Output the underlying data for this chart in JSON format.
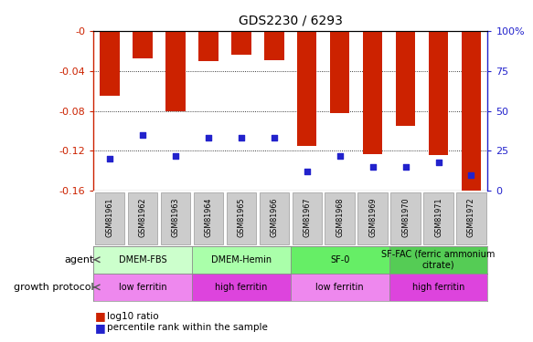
{
  "title": "GDS2230 / 6293",
  "samples": [
    "GSM81961",
    "GSM81962",
    "GSM81963",
    "GSM81964",
    "GSM81965",
    "GSM81966",
    "GSM81967",
    "GSM81968",
    "GSM81969",
    "GSM81970",
    "GSM81971",
    "GSM81972"
  ],
  "log10_ratio": [
    -0.065,
    -0.028,
    -0.08,
    -0.03,
    -0.024,
    -0.029,
    -0.115,
    -0.082,
    -0.123,
    -0.095,
    -0.124,
    -0.16
  ],
  "percentile_rank": [
    20,
    35,
    22,
    33,
    33,
    33,
    12,
    22,
    15,
    15,
    18,
    10
  ],
  "ylim": [
    -0.16,
    0.0
  ],
  "yticks": [
    0.0,
    -0.04,
    -0.08,
    -0.12,
    -0.16
  ],
  "ytick_labels": [
    "-0",
    "-0.04",
    "-0.08",
    "-0.12",
    "-0.16"
  ],
  "right_ytick_values": [
    100,
    75,
    50,
    25,
    0
  ],
  "right_ytick_labels": [
    "100%",
    "75",
    "50",
    "25",
    "0"
  ],
  "bar_color": "#cc2200",
  "dot_color": "#2222cc",
  "agent_groups": [
    {
      "label": "DMEM-FBS",
      "start": 0,
      "end": 3,
      "color": "#ccffcc"
    },
    {
      "label": "DMEM-Hemin",
      "start": 3,
      "end": 6,
      "color": "#aaffaa"
    },
    {
      "label": "SF-0",
      "start": 6,
      "end": 9,
      "color": "#66ee66"
    },
    {
      "label": "SF-FAC (ferric ammonium\ncitrate)",
      "start": 9,
      "end": 12,
      "color": "#55cc55"
    }
  ],
  "protocol_groups": [
    {
      "label": "low ferritin",
      "start": 0,
      "end": 3,
      "color": "#ee88ee"
    },
    {
      "label": "high ferritin",
      "start": 3,
      "end": 6,
      "color": "#dd44dd"
    },
    {
      "label": "low ferritin",
      "start": 6,
      "end": 9,
      "color": "#ee88ee"
    },
    {
      "label": "high ferritin",
      "start": 9,
      "end": 12,
      "color": "#dd44dd"
    }
  ],
  "agent_label": "agent",
  "protocol_label": "growth protocol",
  "legend_bar_label": "log10 ratio",
  "legend_dot_label": "percentile rank within the sample",
  "tick_label_color": "#cc2200",
  "right_axis_color": "#2222cc",
  "xtick_bg_color": "#cccccc",
  "grid_color": "#000000",
  "background_color": "#ffffff"
}
